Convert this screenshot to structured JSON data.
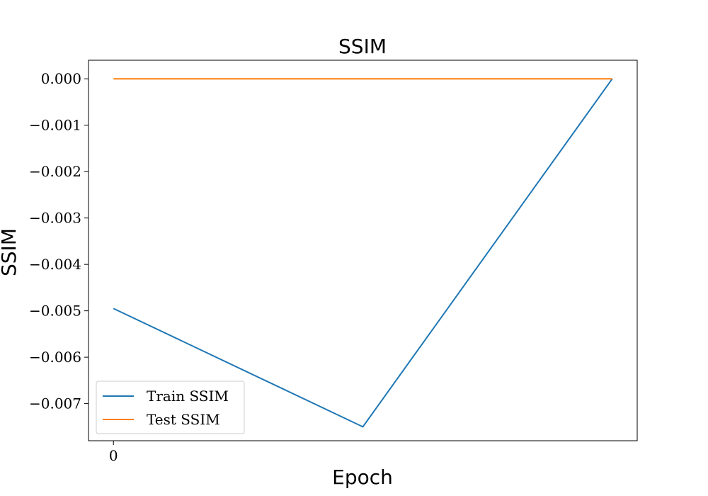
{
  "chart_data": {
    "type": "line",
    "title": "SSIM",
    "xlabel": "Epoch",
    "ylabel": "SSIM",
    "x": [
      0,
      1,
      2
    ],
    "x_ticks": [
      0
    ],
    "x_tick_labels": [
      "0"
    ],
    "xlim": [
      -0.1,
      2.1
    ],
    "ylim": [
      -0.0078,
      0.0004
    ],
    "y_ticks": [
      0.0,
      -0.001,
      -0.002,
      -0.003,
      -0.004,
      -0.005,
      -0.006,
      -0.007
    ],
    "y_tick_labels": [
      "0.000",
      "−0.001",
      "−0.002",
      "−0.003",
      "−0.004",
      "−0.005",
      "−0.006",
      "−0.007"
    ],
    "grid": false,
    "legend_position": "lower-left",
    "series": [
      {
        "name": "Train SSIM",
        "color": "#1f77b4",
        "values": [
          -0.00495,
          -0.0075,
          0.0
        ]
      },
      {
        "name": "Test SSIM",
        "color": "#ff7f0e",
        "values": [
          0.0,
          0.0,
          0.0
        ]
      }
    ]
  }
}
